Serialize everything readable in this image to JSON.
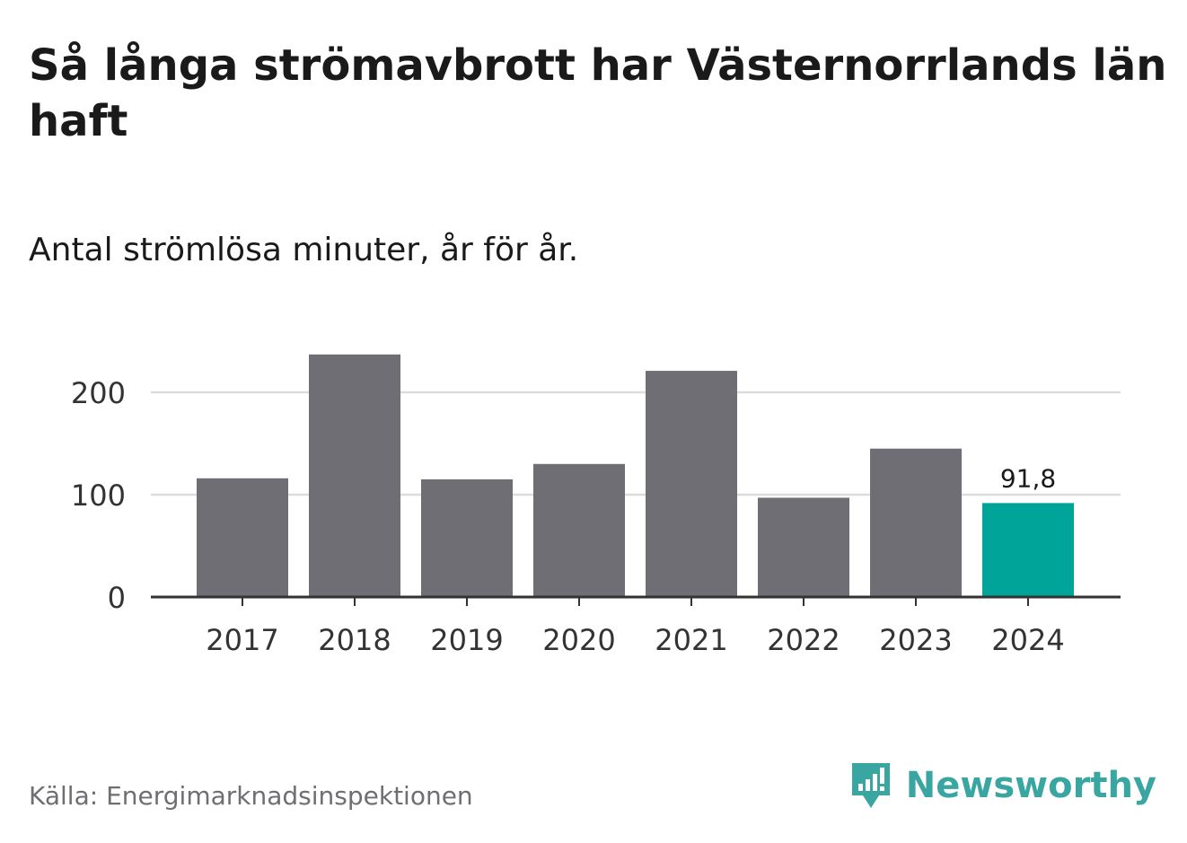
{
  "title": "Så långa strömavbrott har Västernorrlands län haft",
  "subtitle": "Antal strömlösa minuter, år för år.",
  "source": "Källa: Energimarknadsinspektionen",
  "brand": {
    "name": "Newsworthy",
    "icon": "newsworthy-logo-icon"
  },
  "colors": {
    "bar": "#6f6e74",
    "highlight": "#00a499",
    "grid": "#dcdcdc",
    "axis": "#333333",
    "brand": "#3aa6a1"
  },
  "chart_data": {
    "type": "bar",
    "categories": [
      "2017",
      "2018",
      "2019",
      "2020",
      "2021",
      "2022",
      "2023",
      "2024"
    ],
    "values": [
      116,
      237,
      115,
      130,
      221,
      97,
      145,
      91.8
    ],
    "highlight_index": 7,
    "data_labels": [
      {
        "index": 7,
        "text": "91,8"
      }
    ],
    "yticks": [
      0,
      100,
      200
    ],
    "ylim": [
      0,
      240
    ],
    "grid": true,
    "xlabel": "",
    "ylabel": ""
  }
}
